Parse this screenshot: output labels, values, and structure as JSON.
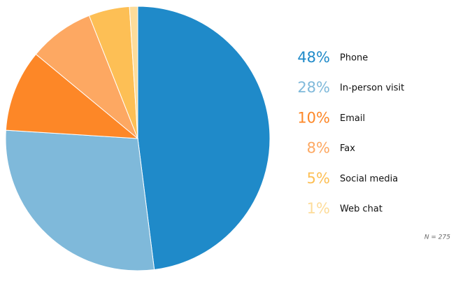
{
  "chart_data": {
    "type": "pie",
    "categories": [
      "Phone",
      "In-person visit",
      "Email",
      "Fax",
      "Social media",
      "Web chat"
    ],
    "values": [
      48,
      28,
      10,
      8,
      5,
      1
    ],
    "value_labels": [
      "48%",
      "28%",
      "10%",
      "8%",
      "5%",
      "1%"
    ],
    "colors": [
      "#1f8ac9",
      "#7fb9da",
      "#fd8727",
      "#fda862",
      "#fdbf55",
      "#fddc9a"
    ],
    "annotation": "N = 275"
  }
}
